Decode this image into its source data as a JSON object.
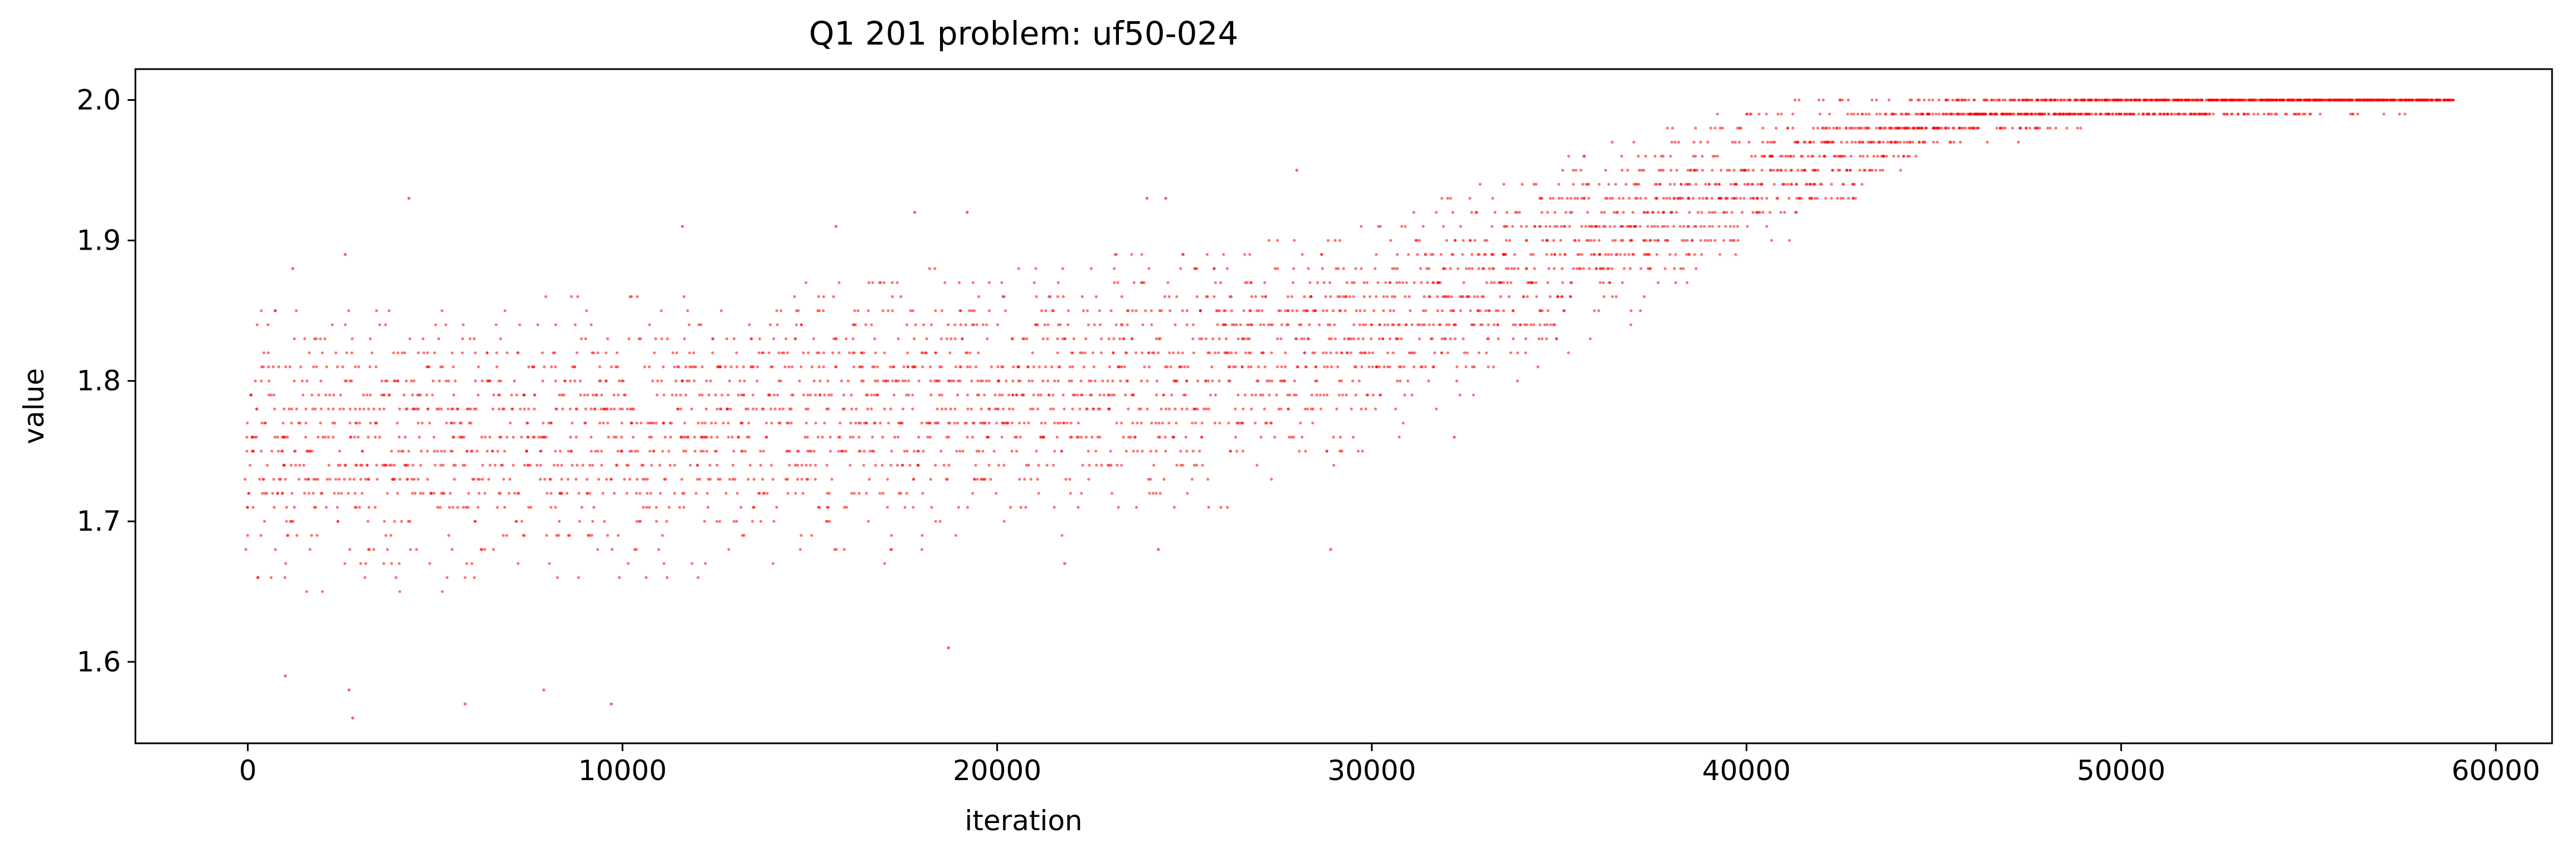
{
  "chart_data": {
    "type": "scatter",
    "title": "Q1 201 problem: uf50-024",
    "xlabel": "iteration",
    "ylabel": "value",
    "xlim": [
      -3000,
      61500
    ],
    "ylim": [
      1.542,
      2.022
    ],
    "xticks": [
      0,
      10000,
      20000,
      30000,
      40000,
      50000,
      60000
    ],
    "xtick_labels": [
      "0",
      "10000",
      "20000",
      "30000",
      "40000",
      "50000",
      "60000"
    ],
    "yticks": [
      1.6,
      1.7,
      1.8,
      1.9,
      2.0
    ],
    "ytick_labels": [
      "1.6",
      "1.7",
      "1.8",
      "1.9",
      "2.0"
    ],
    "grid": false,
    "legend": "none",
    "marker_color": "#ff0000",
    "x_max": 58800,
    "y_quantum": 0.01,
    "trend": [
      {
        "x": 0,
        "lo": 1.64,
        "hi": 1.85,
        "mean": 1.755
      },
      {
        "x": 10000,
        "lo": 1.66,
        "hi": 1.86,
        "mean": 1.765
      },
      {
        "x": 20000,
        "lo": 1.68,
        "hi": 1.88,
        "mean": 1.785
      },
      {
        "x": 26000,
        "lo": 1.71,
        "hi": 1.89,
        "mean": 1.81
      },
      {
        "x": 30000,
        "lo": 1.74,
        "hi": 1.91,
        "mean": 1.835
      },
      {
        "x": 34000,
        "lo": 1.8,
        "hi": 1.95,
        "mean": 1.875
      },
      {
        "x": 38000,
        "lo": 1.86,
        "hi": 1.98,
        "mean": 1.925
      },
      {
        "x": 42000,
        "lo": 1.91,
        "hi": 2.0,
        "mean": 1.96
      },
      {
        "x": 45000,
        "lo": 1.96,
        "hi": 2.0,
        "mean": 1.985
      },
      {
        "x": 50000,
        "lo": 1.98,
        "hi": 2.0,
        "mean": 1.997
      },
      {
        "x": 58800,
        "lo": 1.99,
        "hi": 2.0,
        "mean": 2.0
      }
    ],
    "outliers": [
      {
        "x": 2800,
        "y": 1.56
      },
      {
        "x": 2700,
        "y": 1.58
      },
      {
        "x": 5800,
        "y": 1.57
      },
      {
        "x": 9700,
        "y": 1.57
      },
      {
        "x": 7900,
        "y": 1.58
      },
      {
        "x": 1000,
        "y": 1.59
      },
      {
        "x": 18700,
        "y": 1.61
      },
      {
        "x": 4300,
        "y": 1.93
      },
      {
        "x": 11600,
        "y": 1.91
      },
      {
        "x": 17800,
        "y": 1.92
      },
      {
        "x": 19200,
        "y": 1.92
      },
      {
        "x": 15700,
        "y": 1.91
      },
      {
        "x": 24000,
        "y": 1.93
      },
      {
        "x": 24500,
        "y": 1.93
      },
      {
        "x": 28000,
        "y": 1.95
      },
      {
        "x": 28900,
        "y": 1.68
      },
      {
        "x": 24300,
        "y": 1.68
      },
      {
        "x": 21800,
        "y": 1.67
      },
      {
        "x": 32200,
        "y": 1.76
      },
      {
        "x": 29200,
        "y": 1.75
      },
      {
        "x": 2600,
        "y": 1.89
      },
      {
        "x": 1200,
        "y": 1.88
      }
    ]
  }
}
